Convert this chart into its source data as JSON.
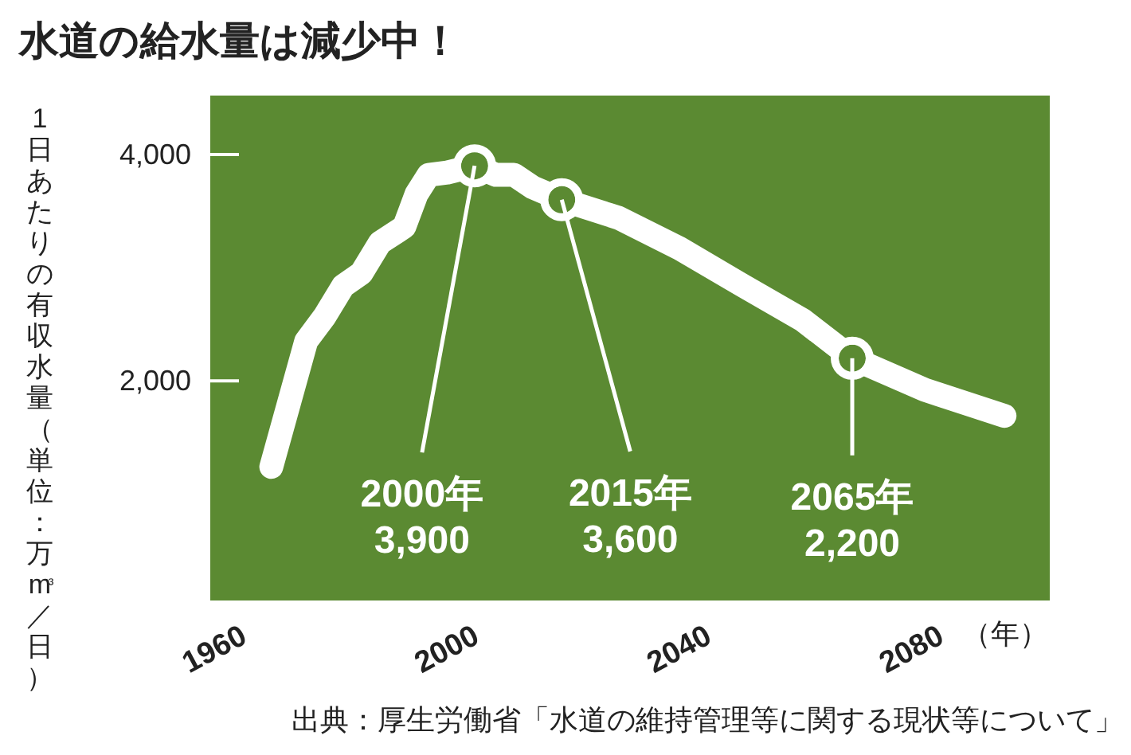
{
  "chart_data": {
    "type": "line",
    "title": "水道の給水量は減少中！",
    "ylabel": "1日あたりの有収水量（単位：万m³／日）",
    "xlabel": "（年）",
    "x": [
      1965,
      1971,
      1974.2,
      1977.4,
      1980.5,
      1983.7,
      1987.9,
      1990,
      1992.1,
      1995.3,
      2000,
      2003.7,
      2006.8,
      2010,
      2015,
      2024.8,
      2035.3,
      2045.9,
      2056.4,
      2065,
      2077.5,
      2091.2
    ],
    "series": [
      {
        "color": "#ffffff",
        "values": [
          1240,
          2350,
          2570,
          2840,
          2950,
          3220,
          3360,
          3650,
          3820,
          3840,
          3900,
          3820,
          3820,
          3710,
          3600,
          3440,
          3170,
          2850,
          2540,
          2200,
          1920,
          1690
        ]
      }
    ],
    "xlim": [
      1954.5,
      2099
    ],
    "ylim": [
      60,
      4520
    ],
    "xticks": [
      1960,
      2000,
      2040,
      2080
    ],
    "yticks": [
      {
        "value": 4000,
        "label": "4,000"
      },
      {
        "value": 2000,
        "label": "2,000"
      }
    ],
    "marker": "none",
    "line_style": "solid",
    "grid": false,
    "annotations": [
      {
        "text": "2000年\n3,900",
        "x": 2000,
        "y": 3900
      },
      {
        "text": "2015年\n3,600",
        "x": 2015,
        "y": 3600
      },
      {
        "text": "2065年\n2,200",
        "x": 2065,
        "y": 2200
      },
      "出典：厚生労働省「水道の維持管理等に関する現状等について」"
    ]
  }
}
